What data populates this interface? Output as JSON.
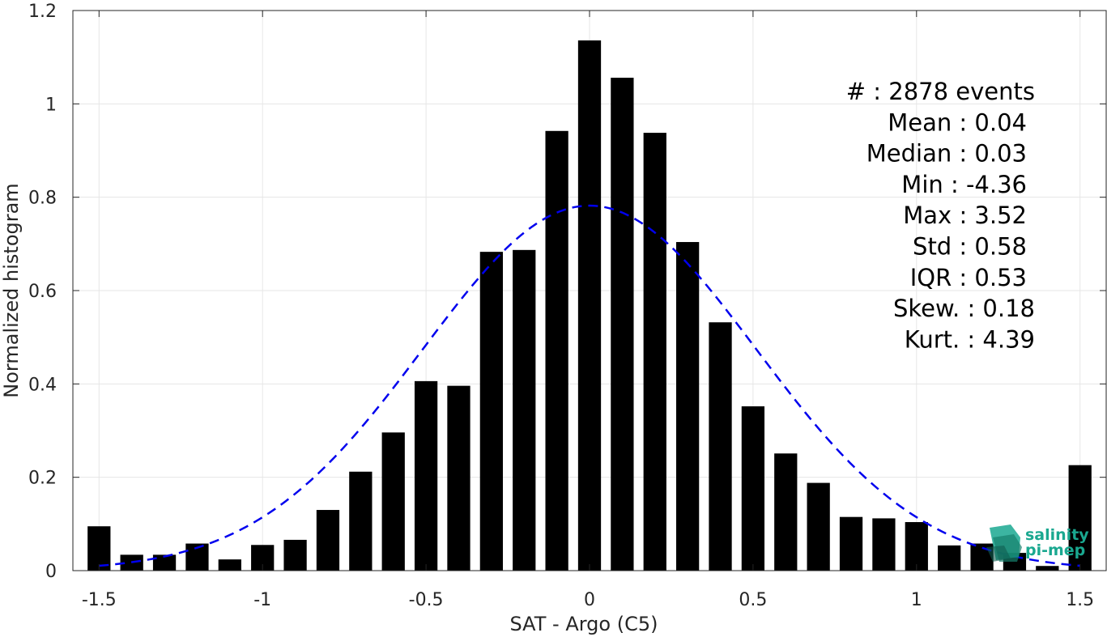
{
  "chart_data": {
    "type": "bar",
    "xlabel": "SAT - Argo (C5)",
    "ylabel": "Normalized histogram",
    "xlim": [
      -1.58,
      1.58
    ],
    "ylim": [
      0,
      1.2
    ],
    "xticks": [
      -1.5,
      -1,
      -0.5,
      0,
      0.5,
      1,
      1.5
    ],
    "xtick_labels": [
      "-1.5",
      "-1",
      "-0.5",
      "0",
      "0.5",
      "1",
      "1.5"
    ],
    "yticks": [
      0,
      0.2,
      0.4,
      0.6,
      0.8,
      1,
      1.2
    ],
    "ytick_labels": [
      "0",
      "0.2",
      "0.4",
      "0.6",
      "0.8",
      "1",
      "1.2"
    ],
    "grid": true,
    "bar_color": "#000000",
    "bar_width": 0.07,
    "x": [
      -1.5,
      -1.4,
      -1.3,
      -1.2,
      -1.1,
      -1.0,
      -0.9,
      -0.8,
      -0.7,
      -0.6,
      -0.5,
      -0.4,
      -0.3,
      -0.2,
      -0.1,
      0.0,
      0.1,
      0.2,
      0.3,
      0.4,
      0.5,
      0.6,
      0.7,
      0.8,
      0.9,
      1.0,
      1.1,
      1.2,
      1.3,
      1.4,
      1.5
    ],
    "values": [
      0.095,
      0.034,
      0.034,
      0.058,
      0.024,
      0.055,
      0.066,
      0.13,
      0.212,
      0.296,
      0.406,
      0.396,
      0.683,
      0.687,
      0.942,
      1.136,
      1.056,
      0.938,
      0.704,
      0.532,
      0.352,
      0.251,
      0.188,
      0.115,
      0.112,
      0.104,
      0.054,
      0.058,
      0.038,
      0.01,
      0.226
    ],
    "fit": {
      "type": "gaussian",
      "style": "dashed",
      "color": "#0000ee",
      "mean": 0.0,
      "peak": 0.782,
      "sigma": 0.51,
      "x_range": [
        -1.5,
        1.5
      ]
    },
    "annotations": [
      "#  : 2878 events",
      "Mean : 0.04",
      "Median : 0.03",
      "Min : -4.36",
      "Max : 3.52",
      "Std : 0.58",
      "IQR : 0.53",
      "Skew. : 0.18",
      "Kurt. : 4.39"
    ]
  },
  "logo": {
    "line1": "salinity",
    "line2": "pi-mep",
    "color": "#1aa890"
  }
}
